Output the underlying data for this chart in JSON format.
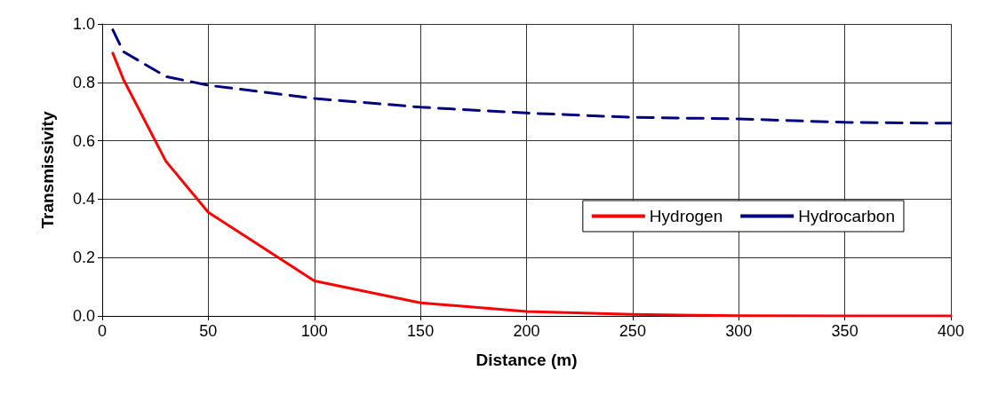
{
  "chart_data": {
    "type": "line",
    "xlabel": "Distance (m)",
    "ylabel": "Transmissivity",
    "x": [
      5,
      10,
      30,
      50,
      100,
      150,
      200,
      250,
      300,
      350,
      400
    ],
    "series": [
      {
        "name": "Hydrogen",
        "color": "#ff0000",
        "line_style": "solid",
        "values": [
          0.9,
          0.81,
          0.53,
          0.355,
          0.12,
          0.045,
          0.015,
          0.005,
          0.001,
          0,
          0
        ]
      },
      {
        "name": "Hydrocarbon",
        "color": "#000080",
        "line_style": "dashed",
        "values": [
          0.98,
          0.905,
          0.82,
          0.79,
          0.745,
          0.715,
          0.695,
          0.68,
          0.675,
          0.663,
          0.66
        ]
      }
    ],
    "xlim": [
      0,
      400
    ],
    "xticks": [
      0,
      50,
      100,
      150,
      200,
      250,
      300,
      350,
      400
    ],
    "ylim": [
      0,
      1
    ],
    "yticks": [
      {
        "value": 0,
        "label": "0.0"
      },
      {
        "value": 0.2,
        "label": "0.2"
      },
      {
        "value": 0.4,
        "label": "0.4"
      },
      {
        "value": 0.6,
        "label": "0.6"
      },
      {
        "value": 0.8,
        "label": "0.8"
      },
      {
        "value": 1,
        "label": "1.0"
      }
    ],
    "grid": true,
    "legend": "right",
    "marker": "none"
  }
}
